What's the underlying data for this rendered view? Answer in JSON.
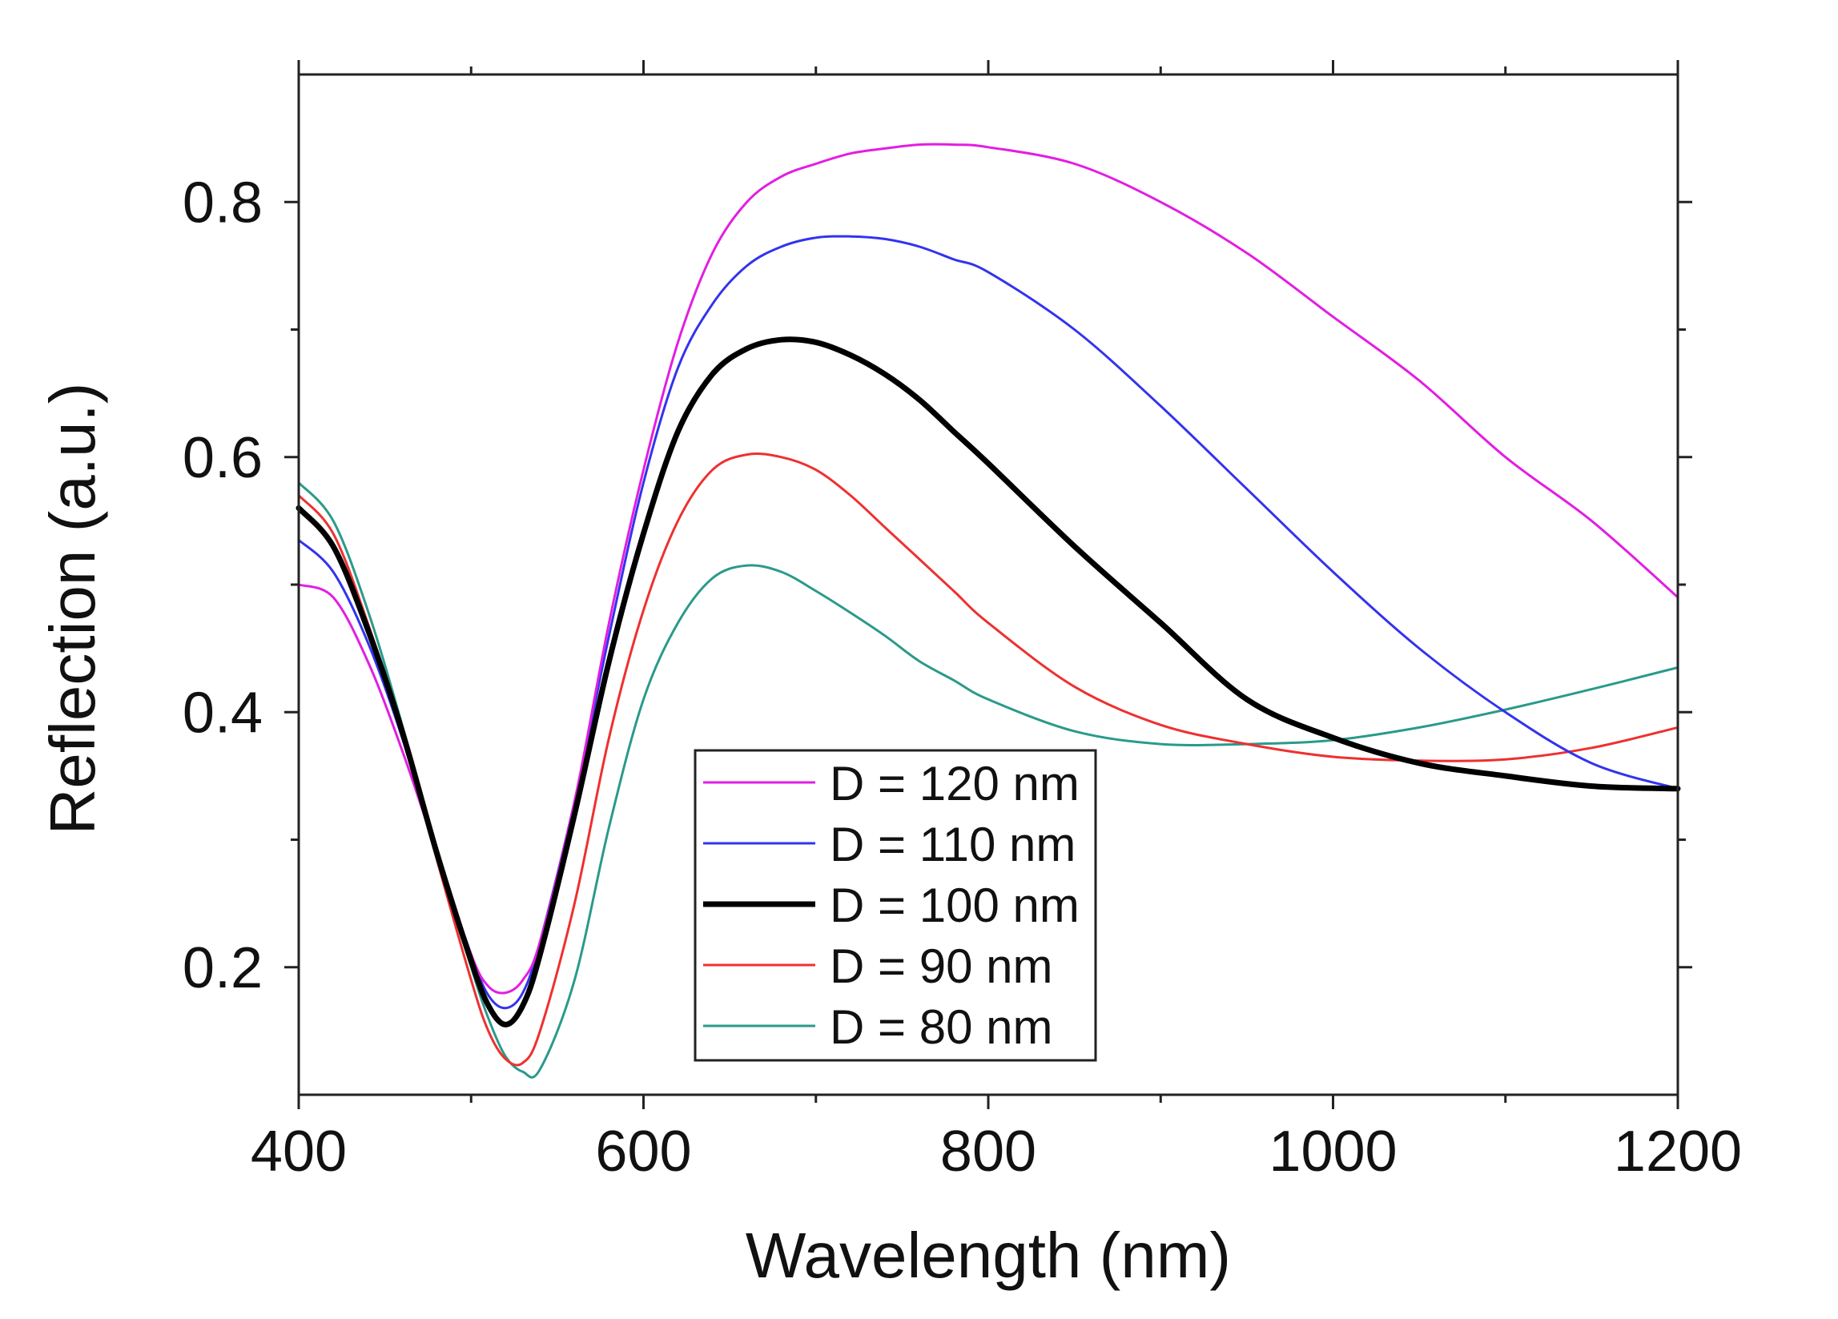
{
  "chart_data": {
    "type": "line",
    "title": "",
    "xlabel": "Wavelength (nm)",
    "ylabel": "Reflection (a.u.)",
    "xlim": [
      400,
      1200
    ],
    "ylim": [
      0.1,
      0.9
    ],
    "x_ticks": [
      400,
      600,
      800,
      1000,
      1200
    ],
    "x_tick_labels": [
      "400",
      "600",
      "800",
      "1000",
      "1200"
    ],
    "y_ticks": [
      0.2,
      0.4,
      0.6,
      0.8
    ],
    "y_tick_labels": [
      "0.2",
      "0.4",
      "0.6",
      "0.8"
    ],
    "grid": false,
    "legend_position": "bottom-center",
    "x": [
      400,
      420,
      440,
      460,
      480,
      500,
      510,
      520,
      530,
      540,
      560,
      580,
      600,
      620,
      640,
      660,
      680,
      700,
      720,
      740,
      760,
      780,
      800,
      850,
      900,
      950,
      1000,
      1050,
      1100,
      1150,
      1200
    ],
    "series": [
      {
        "name": "D = 120 nm",
        "color": "#e21ee2",
        "stroke": "thin",
        "values": [
          0.5,
          0.49,
          0.44,
          0.37,
          0.29,
          0.21,
          0.185,
          0.18,
          0.19,
          0.22,
          0.33,
          0.47,
          0.59,
          0.69,
          0.76,
          0.8,
          0.82,
          0.83,
          0.838,
          0.842,
          0.845,
          0.845,
          0.843,
          0.83,
          0.8,
          0.76,
          0.71,
          0.66,
          0.6,
          0.55,
          0.49
        ]
      },
      {
        "name": "D = 110 nm",
        "color": "#3333ee",
        "stroke": "thin",
        "values": [
          0.535,
          0.51,
          0.455,
          0.38,
          0.29,
          0.21,
          0.178,
          0.168,
          0.18,
          0.22,
          0.33,
          0.46,
          0.58,
          0.67,
          0.72,
          0.75,
          0.765,
          0.772,
          0.773,
          0.771,
          0.765,
          0.755,
          0.745,
          0.7,
          0.64,
          0.575,
          0.51,
          0.45,
          0.4,
          0.36,
          0.34
        ]
      },
      {
        "name": "D = 100 nm",
        "color": "#000000",
        "stroke": "thick",
        "values": [
          0.56,
          0.53,
          0.465,
          0.385,
          0.29,
          0.205,
          0.17,
          0.155,
          0.17,
          0.21,
          0.32,
          0.44,
          0.54,
          0.62,
          0.665,
          0.685,
          0.692,
          0.69,
          0.68,
          0.665,
          0.645,
          0.62,
          0.595,
          0.53,
          0.47,
          0.41,
          0.38,
          0.36,
          0.35,
          0.342,
          0.34
        ]
      },
      {
        "name": "D = 90 nm",
        "color": "#ee3030",
        "stroke": "thin",
        "values": [
          0.57,
          0.54,
          0.47,
          0.385,
          0.285,
          0.19,
          0.15,
          0.128,
          0.125,
          0.15,
          0.25,
          0.38,
          0.48,
          0.55,
          0.59,
          0.602,
          0.6,
          0.59,
          0.57,
          0.545,
          0.52,
          0.495,
          0.47,
          0.42,
          0.39,
          0.375,
          0.365,
          0.362,
          0.363,
          0.372,
          0.388
        ]
      },
      {
        "name": "D = 80 nm",
        "color": "#2a9a8a",
        "stroke": "thin",
        "values": [
          0.58,
          0.55,
          0.48,
          0.39,
          0.29,
          0.2,
          0.16,
          0.13,
          0.118,
          0.12,
          0.19,
          0.31,
          0.41,
          0.47,
          0.505,
          0.515,
          0.51,
          0.495,
          0.478,
          0.46,
          0.44,
          0.425,
          0.41,
          0.385,
          0.375,
          0.375,
          0.378,
          0.388,
          0.402,
          0.418,
          0.435
        ]
      }
    ]
  }
}
